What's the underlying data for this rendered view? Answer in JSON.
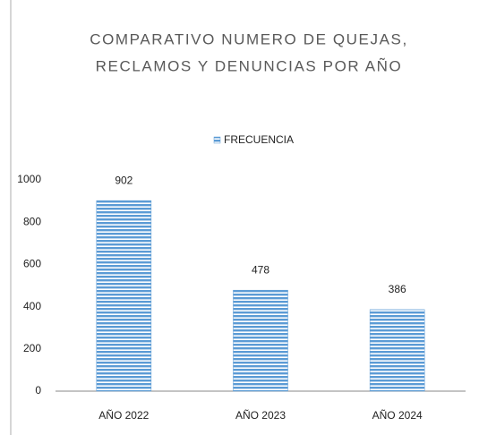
{
  "chart_data": {
    "type": "bar",
    "title": [
      "COMPARATIVO NUMERO DE QUEJAS,",
      "RECLAMOS Y DENUNCIAS POR AÑO"
    ],
    "categories": [
      "AÑO 2022",
      "AÑO 2023",
      "AÑO 2024"
    ],
    "series": [
      {
        "name": "FRECUENCIA",
        "color": "#5b9bd5",
        "values": [
          902,
          478,
          386
        ]
      }
    ],
    "ylim": [
      0,
      1000
    ],
    "yticks": [
      0,
      200,
      400,
      600,
      800,
      1000
    ],
    "grid": false,
    "legend": "top"
  }
}
